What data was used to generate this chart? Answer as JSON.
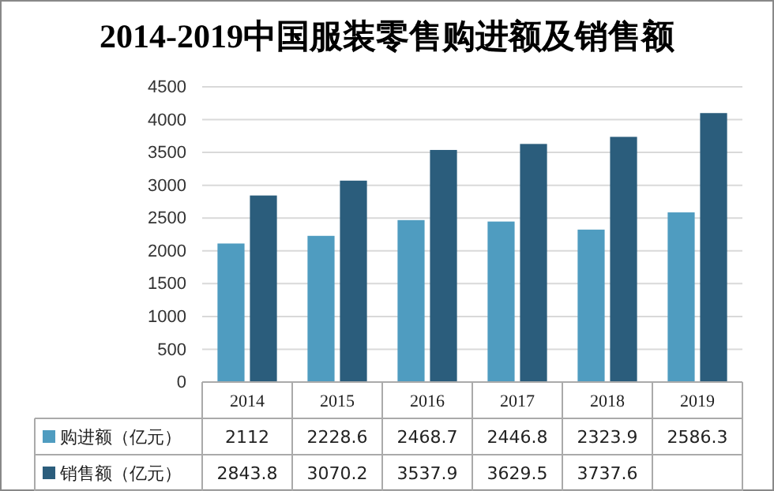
{
  "chart_data": {
    "type": "bar",
    "title": "2014-2019中国服装零售购进额及销售额",
    "categories": [
      "2014",
      "2015",
      "2016",
      "2017",
      "2018",
      "2019"
    ],
    "series": [
      {
        "name": "购进额（亿元）",
        "color": "#4f9cc0",
        "values": [
          2112,
          2228.6,
          2468.7,
          2446.8,
          2323.9,
          2586.3
        ],
        "value_labels": [
          "2112",
          "2228.6",
          "2468.7",
          "2446.8",
          "2323.9",
          "2586.3"
        ]
      },
      {
        "name": "销售额（亿元）",
        "color": "#2b5d7c",
        "values": [
          2843.8,
          3070.2,
          3537.9,
          3629.5,
          3737.6,
          4100
        ],
        "value_labels": [
          "2843.8",
          "3070.2",
          "3537.9",
          "3629.5",
          "3737.6",
          null
        ]
      }
    ],
    "ylim": [
      0,
      4500
    ],
    "yticks": [
      0,
      500,
      1000,
      1500,
      2000,
      2500,
      3000,
      3500,
      4000,
      4500
    ],
    "grid": "y",
    "legend": "bottom"
  }
}
